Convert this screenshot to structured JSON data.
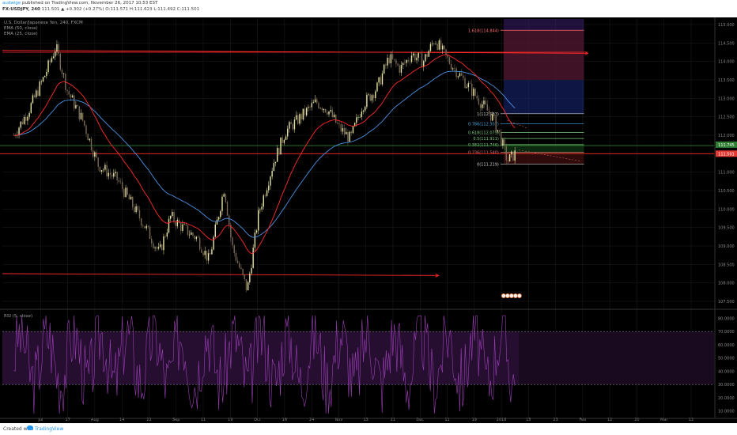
{
  "header": {
    "publisher": "audwige",
    "published_text": "published on TradingView.com, November 26, 2017 10:53 EST",
    "symbol": "FX:USDJPY, 240",
    "quote": "111.501 ▲ +0.302 (+0.27%) O:111.571 H:111.623 L:111.492 C:111.501"
  },
  "footer": {
    "created_with": "Created with",
    "brand": "TradingView"
  },
  "indicators": {
    "title": "U.S. Dollar/Japanese Yen, 240, FXCM",
    "ema50": "EMA (50, close)",
    "ema25": "EMA (25, close)",
    "rsi": "RSI (5, close)"
  },
  "colors": {
    "background": "#000000",
    "grid": "#1e1e1e",
    "candle_up": "#e8e6a5",
    "candle_down": "#7a6a55",
    "ema50": "#4a90e2",
    "ema25": "#ff2a2a",
    "rsi": "#9b3fb5",
    "level_line": "#ff2a2a",
    "price_tag_red": "#e53935",
    "price_tag_green": "#2e7d32"
  },
  "chart_data": {
    "type": "candlestick",
    "symbol": "USDJPY",
    "timeframe": "240",
    "main_axis": {
      "ticks": [
        "115.000",
        "114.500",
        "114.000",
        "113.500",
        "113.000",
        "112.500",
        "112.000",
        "111.500",
        "111.000",
        "110.500",
        "110.000",
        "109.500",
        "109.000",
        "108.500",
        "108.000",
        "107.500"
      ],
      "ylim": [
        107.35,
        115.15
      ]
    },
    "x_ticks": [
      "Jul",
      "17",
      "Aug",
      "14",
      "22",
      "Sep",
      "11",
      "19",
      "Oct",
      "16",
      "24",
      "Nov",
      "13",
      "21",
      "Dec",
      "11",
      "19",
      "2018",
      "15",
      "23",
      "Feb",
      "12",
      "20",
      "Mar",
      "12"
    ],
    "price_path": [
      {
        "x": 0,
        "y": 112.0
      },
      {
        "x": 4,
        "y": 112.7
      },
      {
        "x": 8,
        "y": 113.6
      },
      {
        "x": 11,
        "y": 114.4
      },
      {
        "x": 14,
        "y": 113.2
      },
      {
        "x": 18,
        "y": 112.4
      },
      {
        "x": 22,
        "y": 111.2
      },
      {
        "x": 27,
        "y": 110.8
      },
      {
        "x": 31,
        "y": 110.1
      },
      {
        "x": 35,
        "y": 109.4
      },
      {
        "x": 38,
        "y": 108.8
      },
      {
        "x": 41,
        "y": 109.8
      },
      {
        "x": 44,
        "y": 109.5
      },
      {
        "x": 48,
        "y": 109.2
      },
      {
        "x": 51,
        "y": 108.6
      },
      {
        "x": 55,
        "y": 110.6
      },
      {
        "x": 57,
        "y": 109.0
      },
      {
        "x": 59,
        "y": 108.4
      },
      {
        "x": 61,
        "y": 107.8
      },
      {
        "x": 64,
        "y": 109.9
      },
      {
        "x": 68,
        "y": 111.3
      },
      {
        "x": 71,
        "y": 112.1
      },
      {
        "x": 75,
        "y": 112.5
      },
      {
        "x": 79,
        "y": 112.9
      },
      {
        "x": 82,
        "y": 112.7
      },
      {
        "x": 85,
        "y": 112.2
      },
      {
        "x": 88,
        "y": 111.9
      },
      {
        "x": 91,
        "y": 112.8
      },
      {
        "x": 95,
        "y": 113.3
      },
      {
        "x": 98,
        "y": 114.1
      },
      {
        "x": 101,
        "y": 113.8
      },
      {
        "x": 104,
        "y": 114.2
      },
      {
        "x": 107,
        "y": 114.0
      },
      {
        "x": 110,
        "y": 114.6
      },
      {
        "x": 113,
        "y": 114.1
      },
      {
        "x": 116,
        "y": 113.7
      },
      {
        "x": 119,
        "y": 113.3
      },
      {
        "x": 122,
        "y": 112.9
      },
      {
        "x": 125,
        "y": 112.5
      },
      {
        "x": 127,
        "y": 112.0
      },
      {
        "x": 129,
        "y": 111.3
      },
      {
        "x": 131,
        "y": 111.5
      }
    ],
    "horizontal_levels": [
      {
        "price": 114.25,
        "color": "#ff2a2a",
        "extends_to": "right"
      },
      {
        "price": 111.72,
        "color": "#2e7d32",
        "extends_to": "full"
      },
      {
        "price": 111.5,
        "color": "#ff2a2a",
        "extends_to": "full"
      }
    ],
    "trend_rays": [
      {
        "from_price": 114.3,
        "to_price": 114.22
      },
      {
        "from_price": 108.25,
        "to_price": 108.2
      }
    ],
    "fibonacci": [
      {
        "ratio": "1.618",
        "label": "1.618(114.844)",
        "price": 114.844
      },
      {
        "ratio": "1",
        "label": "1(112.583)",
        "price": 112.583
      },
      {
        "ratio": "0.786",
        "label": "0.786(112.307)",
        "price": 112.307
      },
      {
        "ratio": "0.618",
        "label": "0.618(112.075)",
        "price": 112.075
      },
      {
        "ratio": "0.5",
        "label": "0.5(111.911)",
        "price": 111.911
      },
      {
        "ratio": "0.382",
        "label": "0.382(111.746)",
        "price": 111.746
      },
      {
        "ratio": "0.236",
        "label": "0.236(111.540)",
        "price": 111.54
      },
      {
        "ratio": "0",
        "label": "0(111.219)",
        "price": 111.219
      }
    ],
    "price_tags": [
      {
        "label": "111.745",
        "price": 111.745,
        "color": "#2e7d32"
      },
      {
        "label": "111.501",
        "price": 111.501,
        "color": "#e53935"
      }
    ],
    "rsi": {
      "ticks": [
        "80.0000",
        "70.0000",
        "60.0000",
        "50.0000",
        "40.0000",
        "30.0000",
        "20.0000",
        "10.0000"
      ],
      "ylim": [
        5,
        85
      ],
      "overbought": 70,
      "oversold": 30
    }
  }
}
